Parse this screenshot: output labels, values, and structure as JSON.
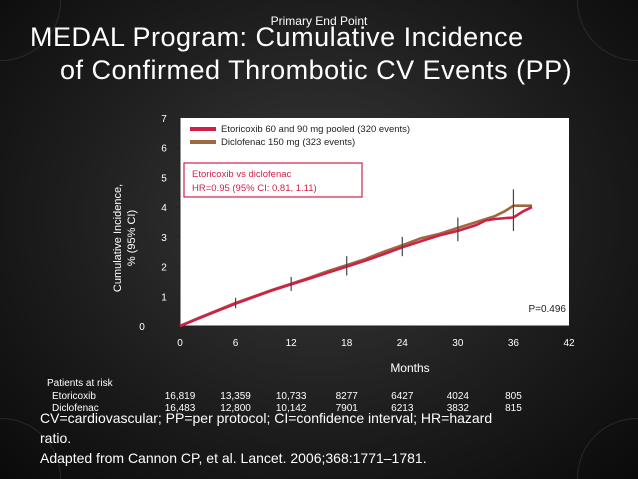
{
  "slide": {
    "subtitle": "Primary End Point",
    "title_line1": "MEDAL Program: Cumulative Incidence",
    "title_line2": "of Confirmed Thrombotic CV Events (PP)",
    "footnote_line1": "CV=cardiovascular; PP=per protocol; CI=confidence interval; HR=hazard",
    "footnote_line2": "ratio.",
    "footnote_line3": "Adapted from Cannon CP, et al. Lancet. 2006;368:1771–1781."
  },
  "colors": {
    "etoricoxib": "#d0204a",
    "diclofenac": "#9c6a3c",
    "plot_bg": "#ffffff",
    "hr_text": "#d0204a"
  },
  "risk_table": {
    "title": "Patients at risk",
    "rows": [
      {
        "label": "Etoricoxib",
        "values": [
          "16,819",
          "13,359",
          "10,733",
          "8277",
          "6427",
          "4024",
          "805"
        ]
      },
      {
        "label": "Diclofenac",
        "values": [
          "16,483",
          "12,800",
          "10,142",
          "7901",
          "6213",
          "3832",
          "815"
        ]
      }
    ]
  },
  "chart_data": {
    "type": "line",
    "title": "",
    "xlabel": "Months",
    "ylabel": "Cumulative Incidence, % (95% CI)",
    "xlim": [
      0,
      42
    ],
    "ylim": [
      0,
      7
    ],
    "xticks": [
      0,
      6,
      12,
      18,
      24,
      30,
      36,
      42
    ],
    "yticks": [
      0,
      1,
      2,
      3,
      4,
      5,
      6,
      7
    ],
    "series": [
      {
        "name": "Etoricoxib 60 and 90 mg pooled (320 events)",
        "x": [
          0,
          2,
          4,
          6,
          8,
          10,
          12,
          14,
          16,
          18,
          20,
          22,
          24,
          26,
          28,
          30,
          32,
          33,
          34,
          36,
          37,
          38
        ],
        "y": [
          0,
          0.25,
          0.5,
          0.75,
          0.98,
          1.2,
          1.4,
          1.6,
          1.8,
          2.0,
          2.2,
          2.42,
          2.65,
          2.85,
          3.05,
          3.2,
          3.4,
          3.55,
          3.6,
          3.65,
          3.85,
          4.0
        ]
      },
      {
        "name": "Diclofenac 150 mg (323 events)",
        "x": [
          0,
          2,
          4,
          6,
          8,
          10,
          12,
          14,
          16,
          18,
          20,
          22,
          24,
          26,
          28,
          30,
          32,
          34,
          35,
          36,
          37,
          38
        ],
        "y": [
          0,
          0.27,
          0.52,
          0.78,
          1.0,
          1.22,
          1.42,
          1.63,
          1.85,
          2.05,
          2.25,
          2.5,
          2.72,
          2.95,
          3.1,
          3.3,
          3.5,
          3.7,
          3.85,
          4.05,
          4.05,
          4.05
        ]
      }
    ],
    "error_bars": [
      {
        "x": 6,
        "low": 0.6,
        "high": 0.95
      },
      {
        "x": 12,
        "low": 1.18,
        "high": 1.65
      },
      {
        "x": 18,
        "low": 1.7,
        "high": 2.35
      },
      {
        "x": 24,
        "low": 2.35,
        "high": 3.0
      },
      {
        "x": 30,
        "low": 2.85,
        "high": 3.65
      },
      {
        "x": 36,
        "low": 3.2,
        "high": 4.6
      }
    ],
    "annotation_line1": "Etoricoxib vs diclofenac",
    "annotation_line2": "HR=0.95 (95% CI: 0.81, 1.11)",
    "p_value": "P=0.496",
    "legend_position": "top"
  }
}
